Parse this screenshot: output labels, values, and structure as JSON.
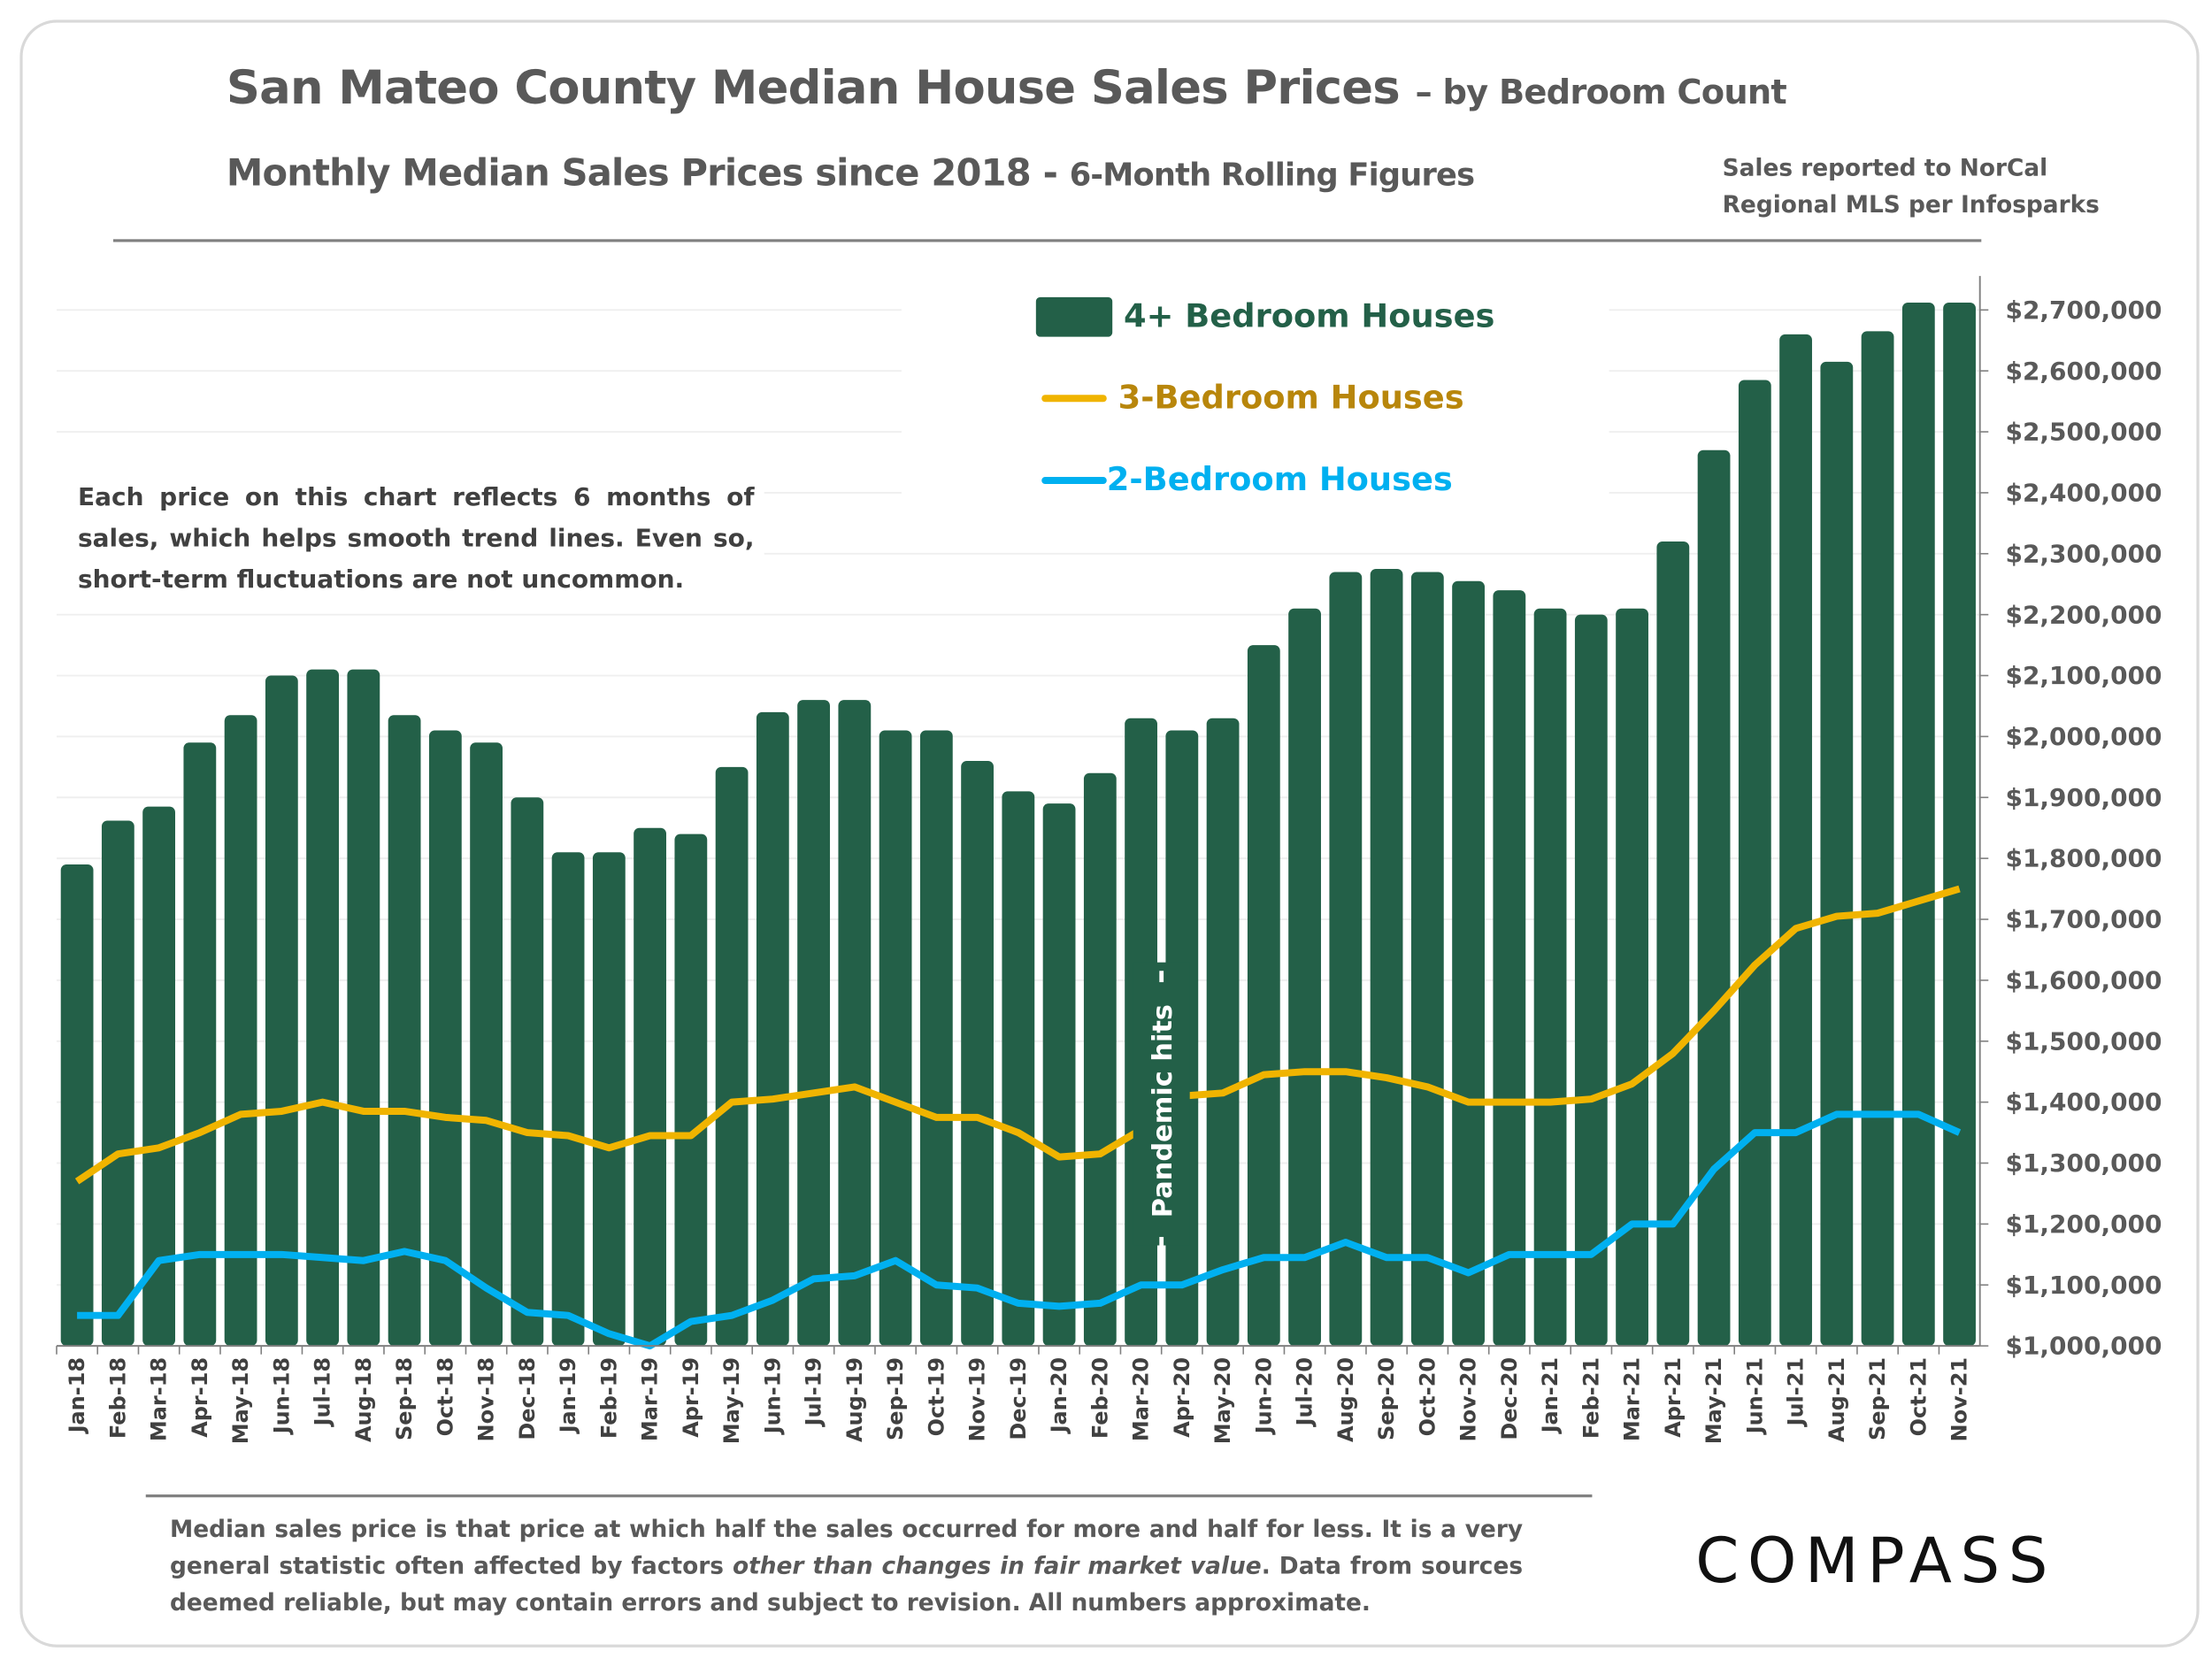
{
  "header": {
    "title": "San Mateo County Median House Sales Prices",
    "title_suffix": "– by Bedroom Count",
    "subtitle": "Monthly Median Sales Prices since 2018 -",
    "subtitle_suffix": "6-Month Rolling Figures",
    "source": "Sales reported to NorCal Regional MLS per Infosparks"
  },
  "note": "Each price on this chart reflects 6 months of sales, which helps smooth trend lines. Even so, short-term fluctuations are not uncommon.",
  "footer": {
    "text_before": "Median sales price is that price at which half the sales occurred for more and half for less. It is a very general statistic often affected by factors ",
    "text_italic": "other than changes in fair market value",
    "text_after": ". Data from sources deemed reliable, but may contain errors and subject to revision. All numbers approximate.",
    "logo": "COMPASS"
  },
  "chart_data": {
    "type": "bar+line",
    "ylim": [
      1000000,
      2700000
    ],
    "y_ticks": [
      "$1,000,000",
      "$1,100,000",
      "$1,200,000",
      "$1,300,000",
      "$1,400,000",
      "$1,500,000",
      "$1,600,000",
      "$1,700,000",
      "$1,800,000",
      "$1,900,000",
      "$2,000,000",
      "$2,100,000",
      "$2,200,000",
      "$2,300,000",
      "$2,400,000",
      "$2,500,000",
      "$2,600,000",
      "$2,700,000"
    ],
    "y_axis_position": "right",
    "grid": true,
    "legend_placement": "top-center",
    "annotation": "Pandemic hits",
    "annotation_at": "Mar-20",
    "categories": [
      "Jan-18",
      "Feb-18",
      "Mar-18",
      "Apr-18",
      "May-18",
      "Jun-18",
      "Jul-18",
      "Aug-18",
      "Sep-18",
      "Oct-18",
      "Nov-18",
      "Dec-18",
      "Jan-19",
      "Feb-19",
      "Mar-19",
      "Apr-19",
      "May-19",
      "Jun-19",
      "Jul-19",
      "Aug-19",
      "Sep-19",
      "Oct-19",
      "Nov-19",
      "Dec-19",
      "Jan-20",
      "Feb-20",
      "Mar-20",
      "Apr-20",
      "May-20",
      "Jun-20",
      "Jul-20",
      "Aug-20",
      "Sep-20",
      "Oct-20",
      "Nov-20",
      "Dec-20",
      "Jan-21",
      "Feb-21",
      "Mar-21",
      "Apr-21",
      "May-21",
      "Jun-21",
      "Jul-21",
      "Aug-21",
      "Sep-21",
      "Oct-21",
      "Nov-21"
    ],
    "series": [
      {
        "name": "4+ Bedroom Houses",
        "kind": "bar",
        "color": "#236048",
        "values": [
          1790000,
          1862000,
          1885000,
          1990000,
          2035000,
          2100000,
          2110000,
          2110000,
          2035000,
          2010000,
          1990000,
          1900000,
          1810000,
          1810000,
          1850000,
          1840000,
          1950000,
          2040000,
          2060000,
          2060000,
          2010000,
          2010000,
          1960000,
          1910000,
          1890000,
          1940000,
          2030000,
          2010000,
          2030000,
          2150000,
          2210000,
          2270000,
          2275000,
          2270000,
          2255000,
          2240000,
          2210000,
          2200000,
          2210000,
          2320000,
          2470000,
          2585000,
          2660000,
          2615000,
          2665000,
          2712000,
          2712000
        ]
      },
      {
        "name": "3-Bedroom Houses",
        "kind": "line",
        "color": "#F0B400",
        "label_color": "#B8860B",
        "values": [
          1270000,
          1315000,
          1325000,
          1350000,
          1380000,
          1385000,
          1400000,
          1385000,
          1385000,
          1375000,
          1370000,
          1350000,
          1345000,
          1325000,
          1345000,
          1345000,
          1400000,
          1405000,
          1415000,
          1425000,
          1400000,
          1375000,
          1375000,
          1350000,
          1310000,
          1315000,
          1355000,
          1410000,
          1415000,
          1445000,
          1450000,
          1450000,
          1440000,
          1425000,
          1400000,
          1400000,
          1400000,
          1405000,
          1430000,
          1480000,
          1550000,
          1625000,
          1685000,
          1705000,
          1710000,
          1730000,
          1750000
        ]
      },
      {
        "name": "2-Bedroom Houses",
        "kind": "line",
        "color": "#00B0F0",
        "label_color": "#00B0F0",
        "values": [
          1050000,
          1050000,
          1140000,
          1150000,
          1150000,
          1150000,
          1145000,
          1140000,
          1155000,
          1140000,
          1095000,
          1055000,
          1050000,
          1020000,
          1000000,
          1040000,
          1050000,
          1075000,
          1110000,
          1115000,
          1140000,
          1100000,
          1095000,
          1070000,
          1065000,
          1070000,
          1100000,
          1100000,
          1125000,
          1145000,
          1145000,
          1170000,
          1145000,
          1145000,
          1120000,
          1150000,
          1150000,
          1150000,
          1200000,
          1200000,
          1290000,
          1350000,
          1350000,
          1380000,
          1380000,
          1380000,
          1350000
        ]
      }
    ]
  }
}
